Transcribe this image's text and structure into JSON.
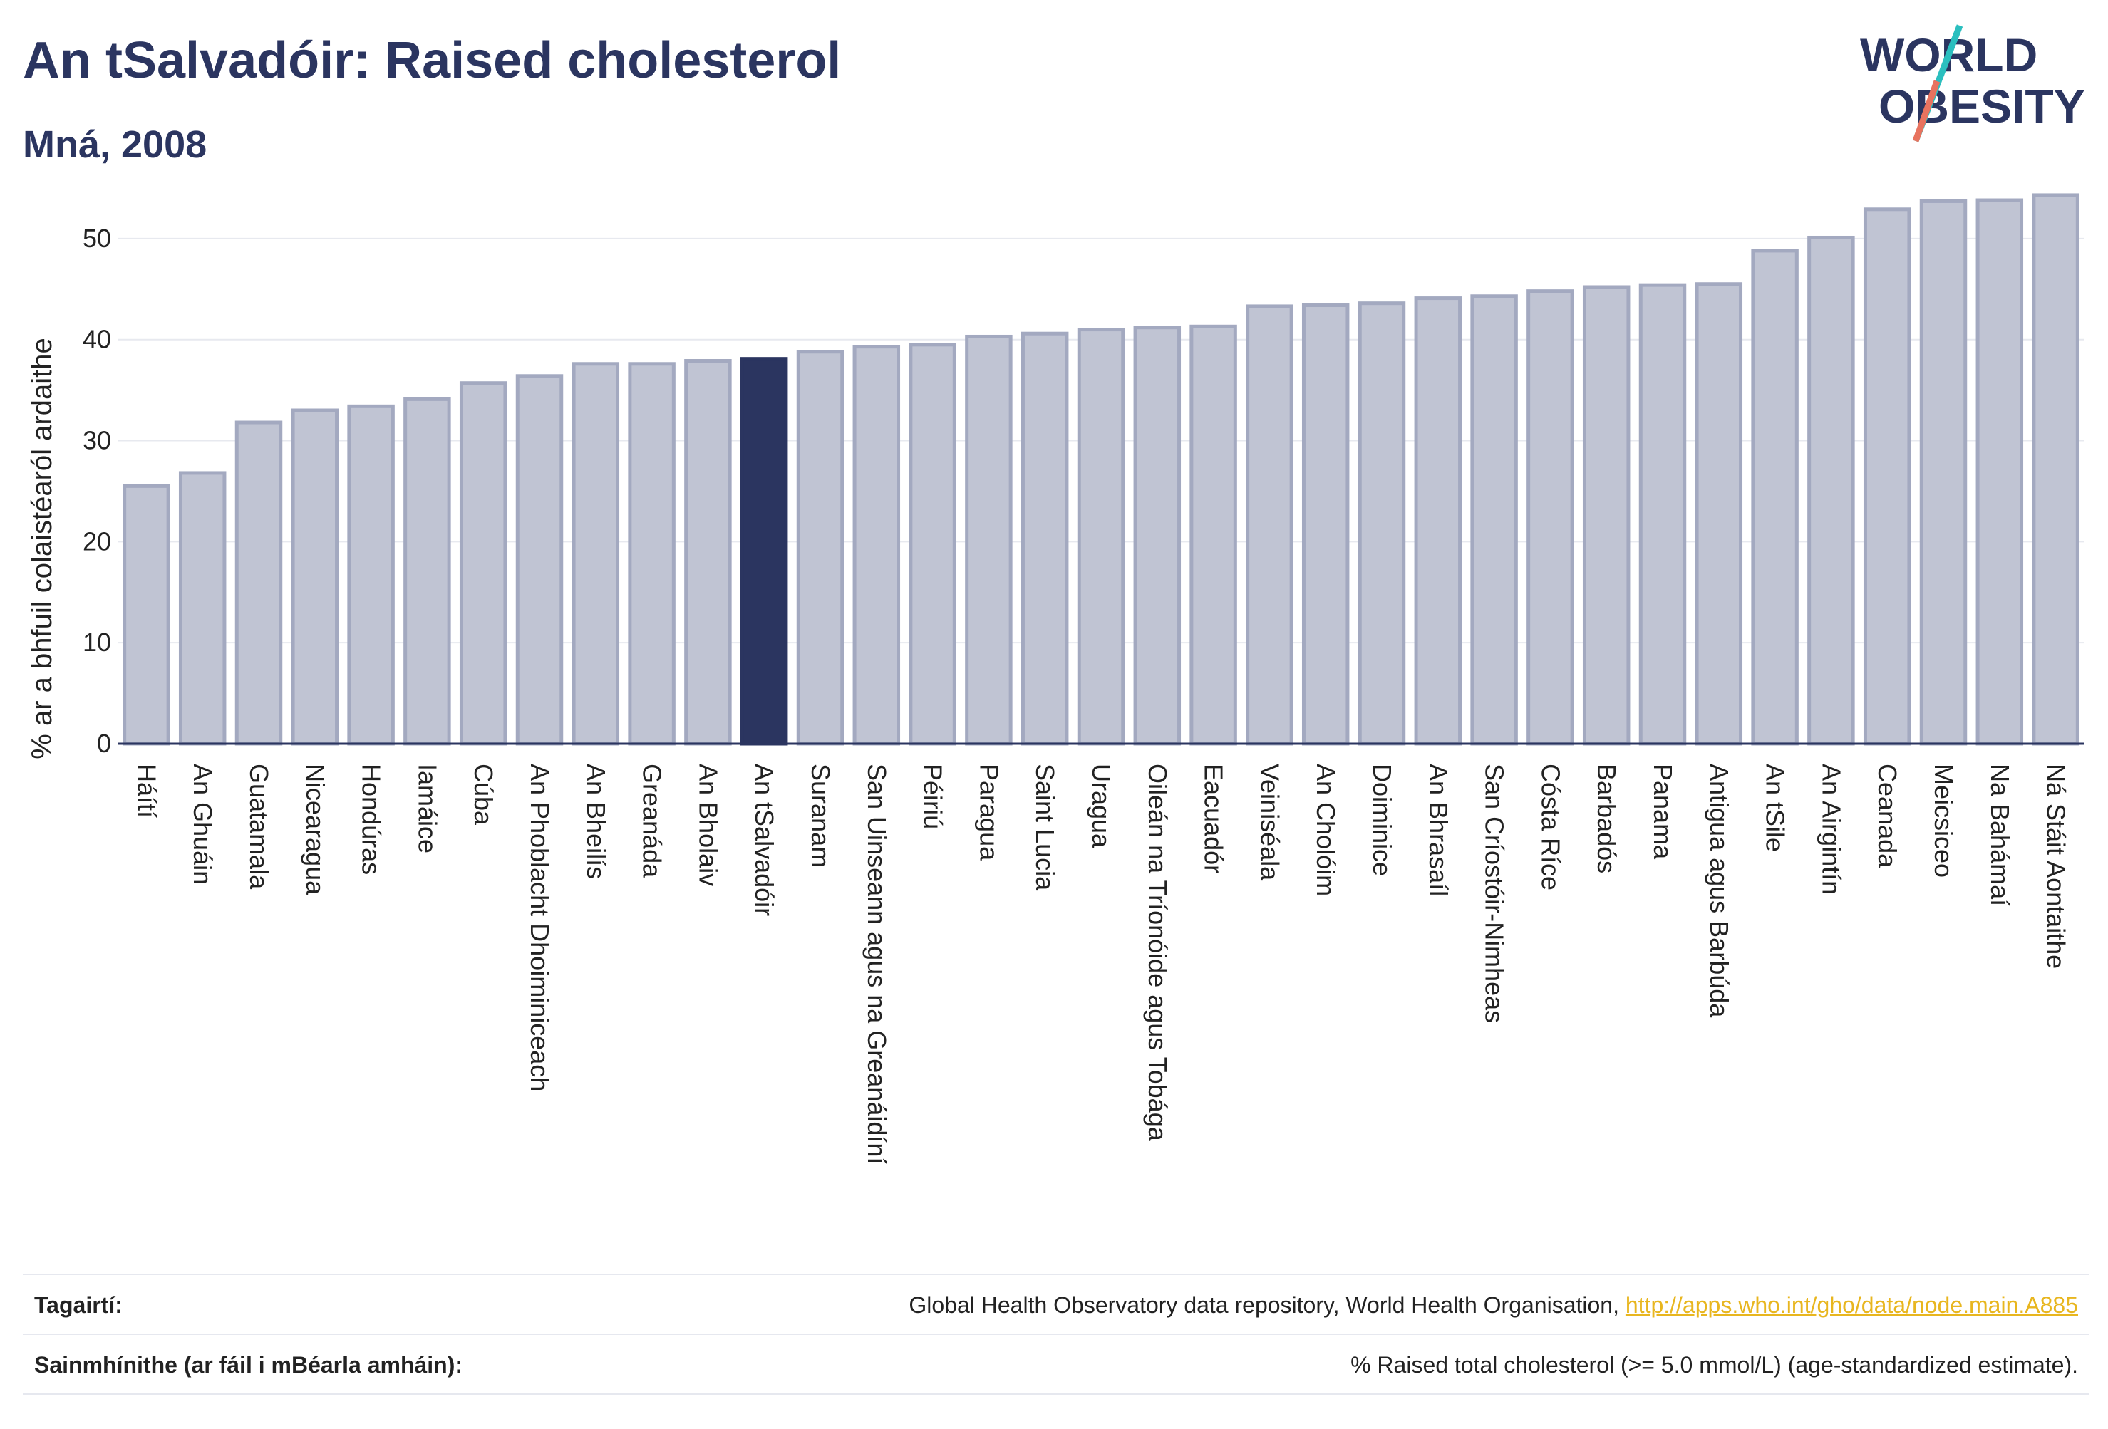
{
  "title": "An tSalvadóir: Raised cholesterol",
  "subtitle": "Mná, 2008",
  "logo": {
    "line1": "WORLD",
    "line2": "OBESITY"
  },
  "colors": {
    "bar": "#c0c4d3",
    "bar_stroke": "#a3a9c0",
    "highlight": "#2b3560",
    "grid": "#e7e9ef",
    "axis": "#2b3560",
    "link": "#e8b61f"
  },
  "chart_data": {
    "type": "bar",
    "ylabel": "% ar a bhfuil colaistéaról ardaithe",
    "ylim": [
      0,
      55
    ],
    "yticks": [
      0,
      10,
      20,
      30,
      40,
      50
    ],
    "grid": true,
    "highlight": "An tSalvadóir",
    "categories": [
      "Háítí",
      "An Ghuáin",
      "Guatamala",
      "Nicearagua",
      "Hondúras",
      "Iamáice",
      "Cúba",
      "An Phoblacht Dhoiminiceach",
      "An Bheilís",
      "Greanáda",
      "An Bholaiv",
      "An tSalvadóir",
      "Suranam",
      "San Uinseann agus na Greanáidíní",
      "Péiriú",
      "Paragua",
      "Saint Lucia",
      "Uragua",
      "Oileán na Tríonóide agus Tobága",
      "Eacuadór",
      "Veiniséala",
      "An Cholóim",
      "Doiminice",
      "An Bhrasaíl",
      "San Críostóir-Nimheas",
      "Cósta Ríce",
      "Barbadós",
      "Panama",
      "Antigua agus Barbúda",
      "An tSile",
      "An Airgintín",
      "Ceanada",
      "Meicsiceo",
      "Na Bahámaí",
      "Ná Stáit Aontaithe"
    ],
    "values": [
      25.5,
      26.8,
      31.8,
      33.0,
      33.4,
      34.1,
      35.7,
      36.4,
      37.6,
      37.6,
      37.9,
      38.1,
      38.8,
      39.3,
      39.5,
      40.3,
      40.6,
      41.0,
      41.2,
      41.3,
      43.3,
      43.4,
      43.6,
      44.1,
      44.3,
      44.8,
      45.2,
      45.4,
      45.5,
      48.8,
      50.1,
      52.9,
      53.7,
      53.8,
      54.3
    ]
  },
  "footer": {
    "refs_label": "Tagairtí:",
    "refs_text": "Global Health Observatory data repository, World Health Organisation, ",
    "refs_link": "http://apps.who.int/gho/data/node.main.A885",
    "defs_label": "Sainmhínithe (ar fáil i mBéarla amháin):",
    "defs_text": "% Raised total cholesterol (>= 5.0 mmol/L) (age-standardized estimate)."
  }
}
